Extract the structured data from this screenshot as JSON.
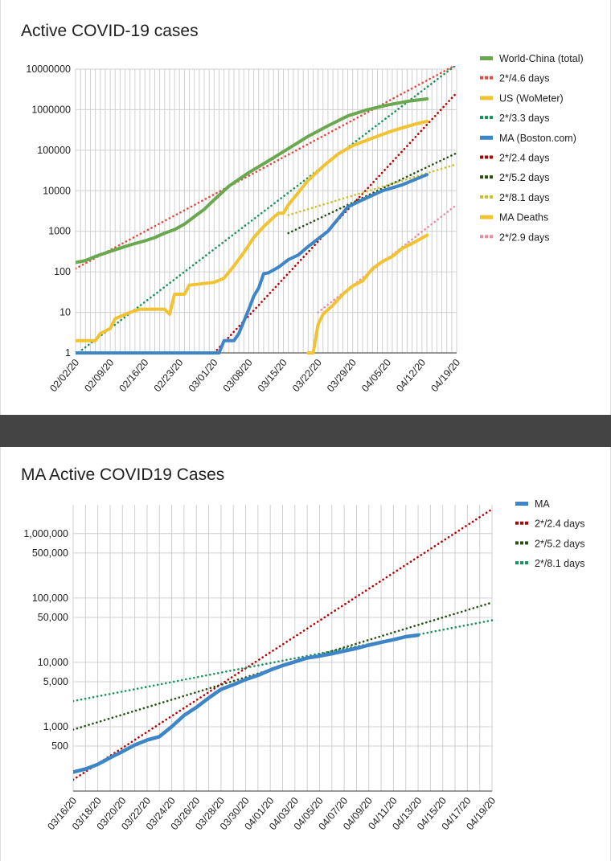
{
  "colors": {
    "green": "#6aa84f",
    "red": "#e04a3f",
    "yellow": "#f1c232",
    "teal": "#18925a",
    "blue": "#3d85c6",
    "darkred": "#b30000",
    "darkgreen": "#274e13",
    "olive": "#c9c02a",
    "pink": "#ee8aa0",
    "grid": "#d0d0d0",
    "divider": "#444444"
  },
  "chart_data": [
    {
      "type": "line",
      "title": "Active COVID-19 cases",
      "xlabel": "",
      "ylabel": "",
      "yscale": "log",
      "ylim": [
        1,
        10000000
      ],
      "xlim": [
        "02/02/20",
        "04/19/20"
      ],
      "x_ticks": [
        "02/02/20",
        "02/09/20",
        "02/16/20",
        "02/23/20",
        "03/01/20",
        "03/08/20",
        "03/15/20",
        "03/22/20",
        "03/29/20",
        "04/05/20",
        "04/12/20",
        "04/19/20"
      ],
      "y_ticks": [
        "1",
        "10",
        "100",
        "1000",
        "10000",
        "100000",
        "1000000",
        "10000000"
      ],
      "grid": true,
      "legend_position": "right",
      "series": [
        {
          "name": "World-China (total)",
          "style": "solid",
          "color": "green",
          "points": [
            [
              "02/02/20",
              170
            ],
            [
              "02/04/20",
              190
            ],
            [
              "02/06/20",
              240
            ],
            [
              "02/08/20",
              290
            ],
            [
              "02/10/20",
              350
            ],
            [
              "02/12/20",
              420
            ],
            [
              "02/14/20",
              500
            ],
            [
              "02/16/20",
              580
            ],
            [
              "02/18/20",
              700
            ],
            [
              "02/20/20",
              900
            ],
            [
              "02/22/20",
              1100
            ],
            [
              "02/24/20",
              1500
            ],
            [
              "02/26/20",
              2300
            ],
            [
              "02/28/20",
              3500
            ],
            [
              "03/01/20",
              6000
            ],
            [
              "03/04/20",
              13000
            ],
            [
              "03/08/20",
              28000
            ],
            [
              "03/12/20",
              55000
            ],
            [
              "03/16/20",
              110000
            ],
            [
              "03/20/20",
              220000
            ],
            [
              "03/24/20",
              400000
            ],
            [
              "03/28/20",
              700000
            ],
            [
              "04/01/20",
              1000000
            ],
            [
              "04/05/20",
              1300000
            ],
            [
              "04/09/20",
              1600000
            ],
            [
              "04/13/20",
              1850000
            ]
          ]
        },
        {
          "name": "2*/4.6 days",
          "style": "dotted",
          "color": "red",
          "points": [
            [
              "02/02/20",
              120
            ],
            [
              "04/19/20",
              13000000
            ]
          ]
        },
        {
          "name": "US (WoMeter)",
          "style": "solid",
          "color": "yellow",
          "points": [
            [
              "02/02/20",
              2
            ],
            [
              "02/06/20",
              2
            ],
            [
              "02/07/20",
              3
            ],
            [
              "02/09/20",
              4
            ],
            [
              "02/10/20",
              7
            ],
            [
              "02/13/20",
              10
            ],
            [
              "02/15/20",
              12
            ],
            [
              "02/20/20",
              12
            ],
            [
              "02/21/20",
              9
            ],
            [
              "02/22/20",
              28
            ],
            [
              "02/24/20",
              28
            ],
            [
              "02/25/20",
              47
            ],
            [
              "02/27/20",
              50
            ],
            [
              "03/01/20",
              55
            ],
            [
              "03/03/20",
              70
            ],
            [
              "03/05/20",
              140
            ],
            [
              "03/07/20",
              300
            ],
            [
              "03/09/20",
              700
            ],
            [
              "03/11/20",
              1300
            ],
            [
              "03/13/20",
              2200
            ],
            [
              "03/14/20",
              2800
            ],
            [
              "03/15/20",
              2800
            ],
            [
              "03/16/20",
              4500
            ],
            [
              "03/18/20",
              9000
            ],
            [
              "03/20/20",
              18000
            ],
            [
              "03/23/20",
              40000
            ],
            [
              "03/26/20",
              80000
            ],
            [
              "03/29/20",
              130000
            ],
            [
              "04/02/20",
              200000
            ],
            [
              "04/06/20",
              300000
            ],
            [
              "04/10/20",
              420000
            ],
            [
              "04/13/20",
              520000
            ]
          ]
        },
        {
          "name": "2*/3.3 days",
          "style": "dotted",
          "color": "teal",
          "points": [
            [
              "02/02/20",
              0.9
            ],
            [
              "04/19/20",
              13000000
            ]
          ]
        },
        {
          "name": "MA (Boston.com)",
          "style": "solid",
          "color": "blue",
          "points": [
            [
              "02/02/20",
              1
            ],
            [
              "03/02/20",
              1
            ],
            [
              "03/03/20",
              2
            ],
            [
              "03/05/20",
              2
            ],
            [
              "03/06/20",
              3
            ],
            [
              "03/08/20",
              12
            ],
            [
              "03/09/20",
              25
            ],
            [
              "03/10/20",
              40
            ],
            [
              "03/11/20",
              90
            ],
            [
              "03/12/20",
              95
            ],
            [
              "03/14/20",
              130
            ],
            [
              "03/16/20",
              200
            ],
            [
              "03/18/20",
              260
            ],
            [
              "03/20/20",
              420
            ],
            [
              "03/22/20",
              650
            ],
            [
              "03/24/20",
              1000
            ],
            [
              "03/26/20",
              2000
            ],
            [
              "03/28/20",
              4000
            ],
            [
              "03/31/20",
              6000
            ],
            [
              "04/04/20",
              10000
            ],
            [
              "04/08/20",
              14000
            ],
            [
              "04/13/20",
              25000
            ]
          ]
        },
        {
          "name": "2*/2.4 days",
          "style": "dotted",
          "color": "darkred",
          "points": [
            [
              "03/01/20",
              1
            ],
            [
              "04/19/20",
              2600000
            ]
          ]
        },
        {
          "name": "2*/5.2 days",
          "style": "dotted",
          "color": "darkgreen",
          "points": [
            [
              "03/16/20",
              900
            ],
            [
              "04/19/20",
              85000
            ]
          ]
        },
        {
          "name": "2*/8.1 days",
          "style": "dotted",
          "color": "olive",
          "points": [
            [
              "03/16/20",
              2500
            ],
            [
              "04/19/20",
              45000
            ]
          ]
        },
        {
          "name": "MA Deaths",
          "style": "solid",
          "color": "yellow",
          "points": [
            [
              "03/20/20",
              1
            ],
            [
              "03/21/20",
              1
            ],
            [
              "03/22/20",
              5
            ],
            [
              "03/23/20",
              9
            ],
            [
              "03/25/20",
              15
            ],
            [
              "03/27/20",
              28
            ],
            [
              "03/29/20",
              45
            ],
            [
              "03/31/20",
              60
            ],
            [
              "04/02/20",
              120
            ],
            [
              "04/04/20",
              180
            ],
            [
              "04/06/20",
              240
            ],
            [
              "04/08/20",
              380
            ],
            [
              "04/10/20",
              500
            ],
            [
              "04/13/20",
              800
            ]
          ]
        },
        {
          "name": "2*/2.9 days",
          "style": "dotted",
          "color": "pink",
          "points": [
            [
              "03/22/20",
              10
            ],
            [
              "04/19/20",
              4500
            ]
          ]
        }
      ]
    },
    {
      "type": "line",
      "title": "MA Active COVID19 Cases",
      "xlabel": "",
      "ylabel": "",
      "yscale": "log",
      "xlim": [
        "03/16/20",
        "04/19/20"
      ],
      "x_ticks": [
        "03/16/20",
        "03/18/20",
        "03/20/20",
        "03/22/20",
        "03/24/20",
        "03/26/20",
        "03/28/20",
        "03/30/20",
        "04/01/20",
        "04/03/20",
        "04/05/20",
        "04/07/20",
        "04/09/20",
        "04/11/20",
        "04/13/20",
        "04/15/20",
        "04/17/20",
        "04/19/20"
      ],
      "y_ticks": [
        "500",
        "1,000",
        "5,000",
        "10,000",
        "50,000",
        "100,000",
        "500,000",
        "1,000,000"
      ],
      "grid": true,
      "legend_position": "right",
      "series": [
        {
          "name": "MA",
          "style": "solid",
          "color": "blue",
          "points": [
            [
              "03/16/20",
              197
            ],
            [
              "03/17/20",
              220
            ],
            [
              "03/18/20",
              260
            ],
            [
              "03/19/20",
              330
            ],
            [
              "03/20/20",
              410
            ],
            [
              "03/21/20",
              520
            ],
            [
              "03/22/20",
              620
            ],
            [
              "03/23/20",
              700
            ],
            [
              "03/24/20",
              1000
            ],
            [
              "03/25/20",
              1500
            ],
            [
              "03/26/20",
              2000
            ],
            [
              "03/27/20",
              2800
            ],
            [
              "03/28/20",
              3800
            ],
            [
              "03/29/20",
              4500
            ],
            [
              "03/30/20",
              5400
            ],
            [
              "03/31/20",
              6300
            ],
            [
              "04/01/20",
              7600
            ],
            [
              "04/02/20",
              8900
            ],
            [
              "04/03/20",
              10200
            ],
            [
              "04/04/20",
              11700
            ],
            [
              "04/05/20",
              12500
            ],
            [
              "04/06/20",
              13600
            ],
            [
              "04/07/20",
              15000
            ],
            [
              "04/08/20",
              16500
            ],
            [
              "04/09/20",
              18500
            ],
            [
              "04/10/20",
              20500
            ],
            [
              "04/11/20",
              22500
            ],
            [
              "04/12/20",
              25000
            ],
            [
              "04/13/20",
              26500
            ]
          ]
        },
        {
          "name": "2*/2.4 days",
          "style": "dotted",
          "color": "darkred",
          "points": [
            [
              "03/16/20",
              150
            ],
            [
              "04/19/20",
              2400000
            ]
          ]
        },
        {
          "name": "2*/5.2 days",
          "style": "dotted",
          "color": "darkgreen",
          "points": [
            [
              "03/16/20",
              900
            ],
            [
              "04/19/20",
              85000
            ]
          ]
        },
        {
          "name": "2*/8.1 days",
          "style": "dotted",
          "color": "teal",
          "points": [
            [
              "03/16/20",
              2500
            ],
            [
              "04/19/20",
              45000
            ]
          ]
        }
      ]
    }
  ]
}
